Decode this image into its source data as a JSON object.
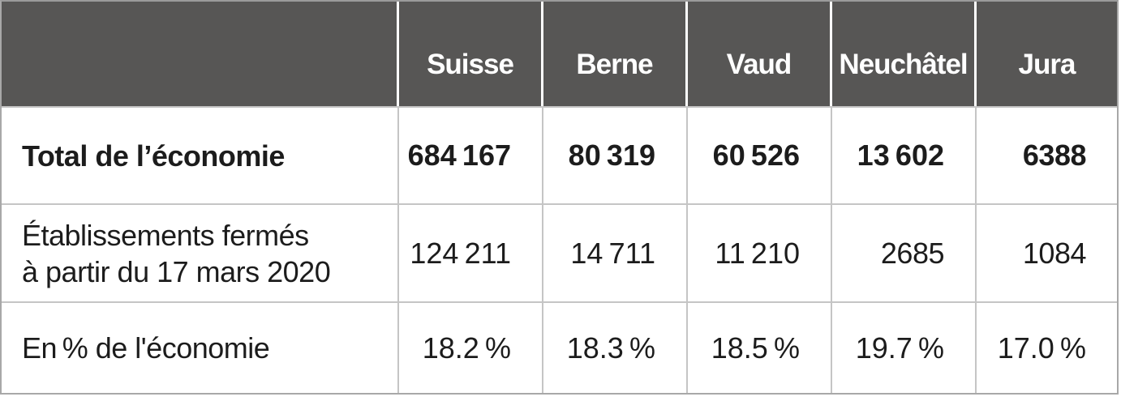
{
  "table": {
    "header": {
      "labels": [
        "",
        "Suisse",
        "Berne",
        "Vaud",
        "Neuchâtel",
        "Jura"
      ]
    },
    "rows": [
      {
        "label": [
          "Total de l’économie"
        ],
        "values": [
          "684 167",
          "80 319",
          "60 526",
          "13 602",
          "6388"
        ]
      },
      {
        "label": [
          "Établissements fermés",
          "à partir du 17 mars 2020"
        ],
        "values": [
          "124 211",
          "14 711",
          "11 210",
          "2685",
          "1084"
        ]
      },
      {
        "label": [
          "En % de l'économie"
        ],
        "values": [
          "18.2 %",
          "18.3 %",
          "18.5 %",
          "19.7 %",
          "17.0 %"
        ]
      }
    ]
  },
  "chart_data": {
    "type": "table",
    "columns": [
      "Suisse",
      "Berne",
      "Vaud",
      "Neuchâtel",
      "Jura"
    ],
    "rows": [
      {
        "label": "Total de l'économie",
        "values": [
          684167,
          80319,
          60526,
          13602,
          6388
        ],
        "unit": ""
      },
      {
        "label": "Établissements fermés à partir du 17 mars 2020",
        "values": [
          124211,
          14711,
          11210,
          2685,
          1084
        ],
        "unit": ""
      },
      {
        "label": "En % de l'économie",
        "values": [
          18.2,
          18.3,
          18.5,
          19.7,
          17.0
        ],
        "unit": "%"
      }
    ]
  },
  "colors": {
    "header_bg": "#575655",
    "header_text": "#ffffff",
    "body_text": "#1c1c1c",
    "grid_line": "#c5c5c5",
    "outer_border": "#a8a8a8"
  }
}
